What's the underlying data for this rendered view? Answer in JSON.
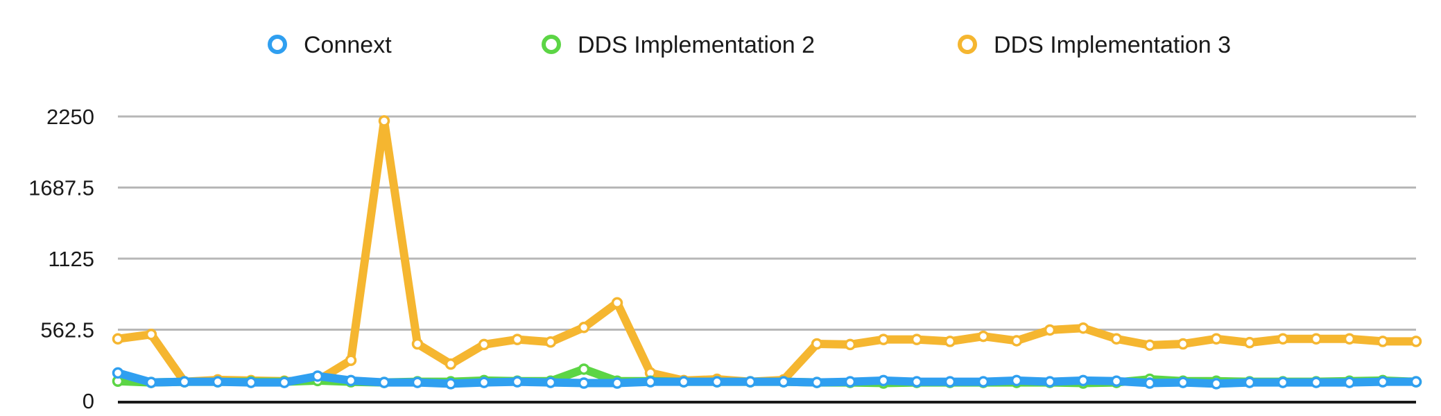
{
  "chart_data": {
    "type": "line",
    "title": "",
    "xlabel": "",
    "ylabel": "",
    "ylim": [
      0,
      2250
    ],
    "yticks": [
      "0",
      "562.5",
      "1125",
      "1687.5",
      "2250"
    ],
    "grid": true,
    "legend_position": "top",
    "x": [
      1,
      2,
      3,
      4,
      5,
      6,
      7,
      8,
      9,
      10,
      11,
      12,
      13,
      14,
      15,
      16,
      17,
      18,
      19,
      20,
      21,
      22,
      23,
      24,
      25,
      26,
      27,
      28,
      29,
      30,
      31,
      32,
      33,
      34,
      35,
      36,
      37,
      38,
      39,
      40
    ],
    "series": [
      {
        "name": "DDS Implementation 3",
        "color": "#f5b630",
        "values": [
          490,
          525,
          150,
          165,
          160,
          155,
          160,
          320,
          2215,
          450,
          290,
          445,
          485,
          465,
          580,
          775,
          220,
          160,
          170,
          150,
          165,
          450,
          445,
          485,
          485,
          470,
          510,
          475,
          560,
          575,
          490,
          440,
          450,
          490,
          460,
          490,
          490,
          490,
          470,
          470
        ]
      },
      {
        "name": "DDS Implementation 2",
        "color": "#5cd545",
        "values": [
          155,
          145,
          150,
          150,
          150,
          150,
          160,
          150,
          145,
          150,
          150,
          160,
          155,
          155,
          250,
          155,
          155,
          150,
          150,
          150,
          150,
          145,
          145,
          140,
          145,
          145,
          145,
          145,
          145,
          140,
          145,
          170,
          155,
          155,
          150,
          150,
          150,
          155,
          160,
          150
        ]
      },
      {
        "name": "Connext",
        "color": "#2f9ff0",
        "values": [
          220,
          145,
          150,
          150,
          145,
          145,
          195,
          160,
          145,
          145,
          135,
          145,
          150,
          145,
          140,
          140,
          150,
          150,
          150,
          150,
          150,
          145,
          150,
          160,
          150,
          150,
          150,
          160,
          150,
          160,
          155,
          140,
          145,
          135,
          145,
          145,
          145,
          145,
          150,
          150
        ]
      }
    ],
    "legend": [
      {
        "label": "Connext",
        "color": "#2f9ff0"
      },
      {
        "label": "DDS Implementation 2",
        "color": "#5cd545"
      },
      {
        "label": "DDS Implementation 3",
        "color": "#f5b630"
      }
    ]
  }
}
